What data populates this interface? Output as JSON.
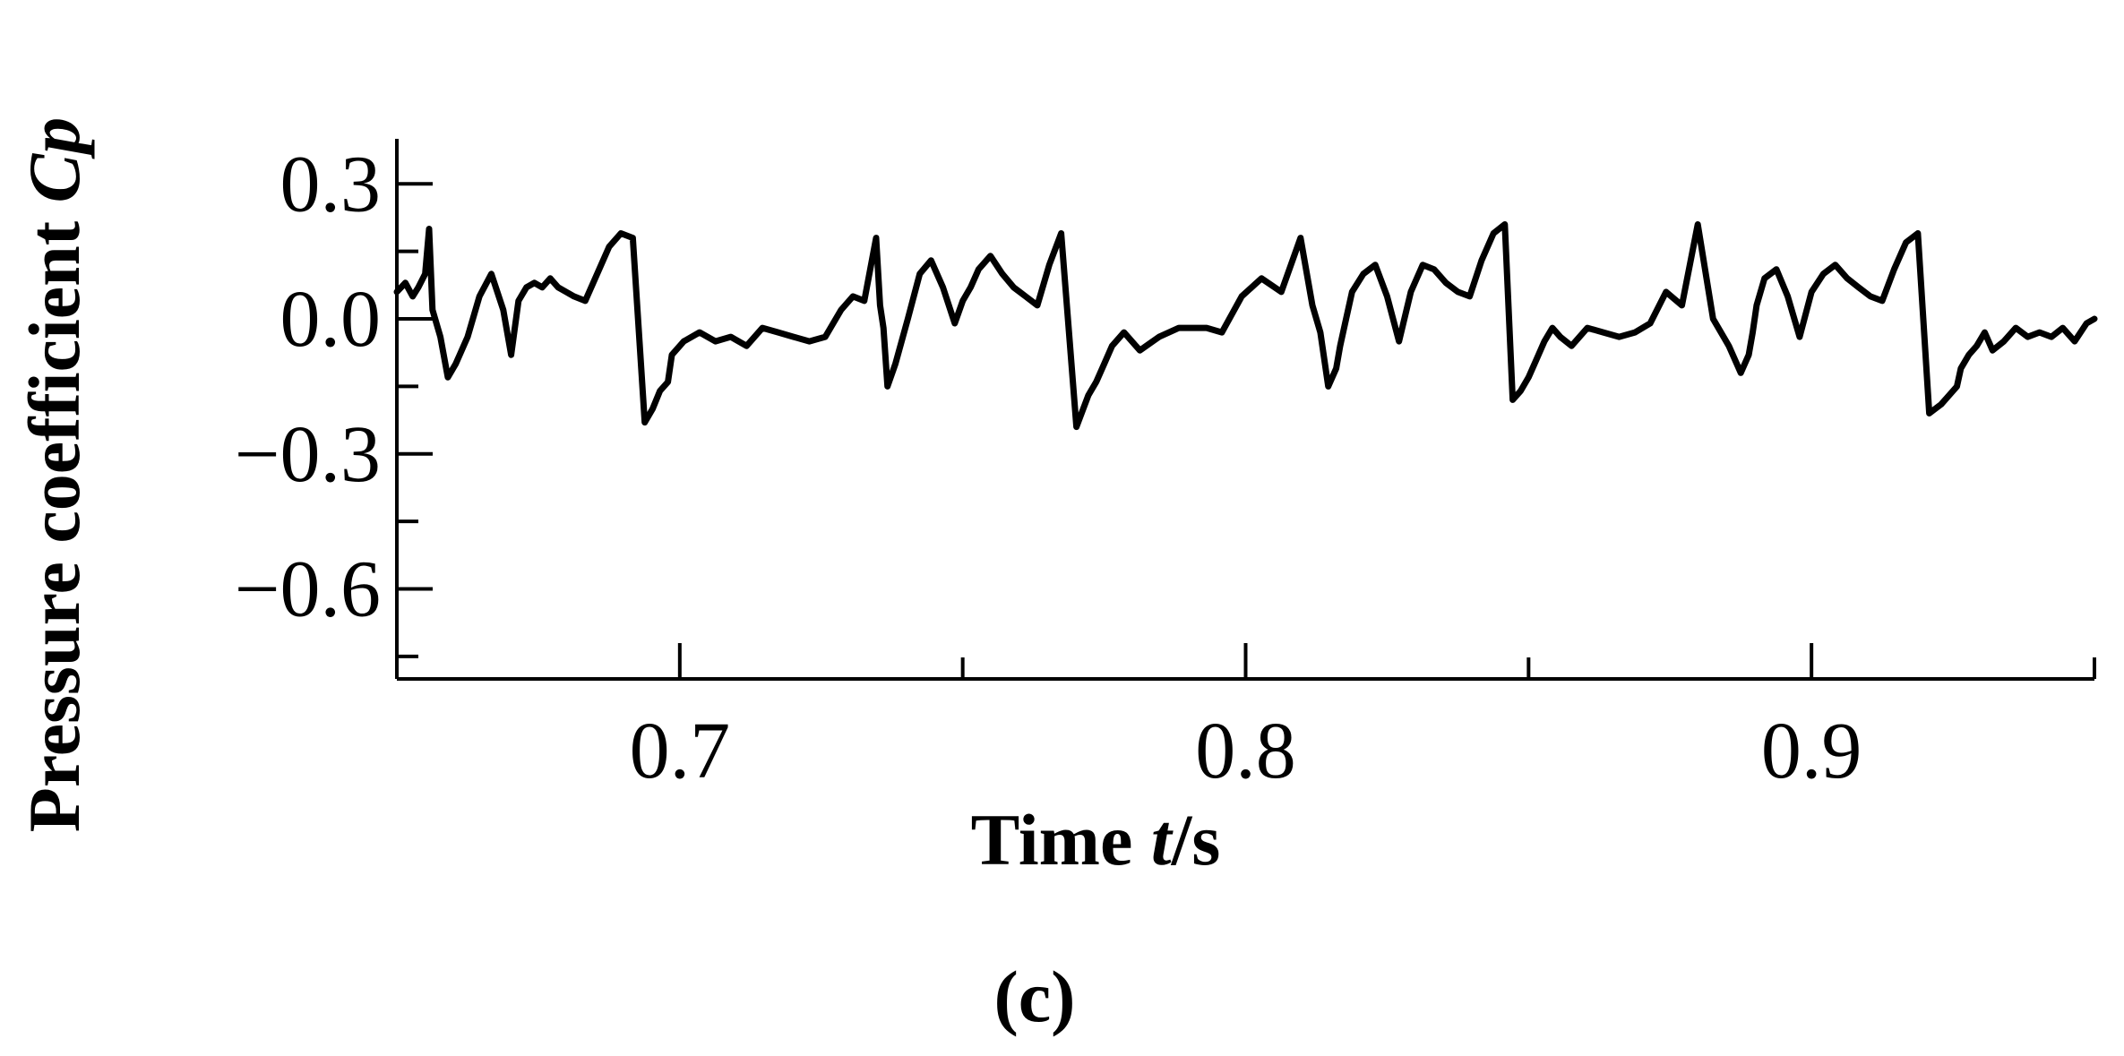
{
  "chart_data": {
    "type": "line",
    "xlabel_parts": [
      {
        "text": "Time ",
        "italic": false
      },
      {
        "text": "t",
        "italic": true
      },
      {
        "text": "/s",
        "italic": false
      }
    ],
    "ylabel_parts": [
      {
        "text": "Pressure coefficient ",
        "italic": false
      },
      {
        "text": "Cp",
        "italic": true
      }
    ],
    "panel_label": "(c)",
    "xlim": [
      0.65,
      0.95
    ],
    "ylim": [
      -0.8,
      0.4
    ],
    "x_major_ticks": [
      0.7,
      0.8,
      0.9
    ],
    "x_minor_ticks": [
      0.75,
      0.85,
      0.95
    ],
    "x_tick_labels": [
      "0.7",
      "0.8",
      "0.9"
    ],
    "y_major_ticks": [
      0.3,
      0.0,
      -0.3,
      -0.6
    ],
    "y_minor_ticks": [
      0.15,
      -0.15,
      -0.45,
      -0.75
    ],
    "y_tick_labels": [
      "0.3",
      "0.0",
      "−0.3",
      "−0.6"
    ],
    "grid": false,
    "line_color": "#000000",
    "series": [
      {
        "x": [
          0.65,
          0.6515,
          0.6528,
          0.6538,
          0.655,
          0.6557,
          0.6563,
          0.6577,
          0.659,
          0.6604,
          0.6625,
          0.6646,
          0.6667,
          0.6688,
          0.6702,
          0.6715,
          0.6729,
          0.6743,
          0.6757,
          0.6771,
          0.6785,
          0.6799,
          0.6813,
          0.6833,
          0.6854,
          0.6875,
          0.6896,
          0.6917,
          0.6938,
          0.6952,
          0.6965,
          0.6979,
          0.6986,
          0.7007,
          0.7035,
          0.7063,
          0.709,
          0.7118,
          0.7146,
          0.7174,
          0.7201,
          0.7229,
          0.7257,
          0.7285,
          0.7306,
          0.7326,
          0.7347,
          0.7354,
          0.736,
          0.7367,
          0.7381,
          0.7403,
          0.7424,
          0.7444,
          0.7465,
          0.7486,
          0.75,
          0.7514,
          0.7528,
          0.7549,
          0.757,
          0.759,
          0.7611,
          0.7632,
          0.7653,
          0.7674,
          0.7701,
          0.7722,
          0.7736,
          0.775,
          0.7764,
          0.7785,
          0.7813,
          0.7847,
          0.7882,
          0.791,
          0.7931,
          0.7958,
          0.7993,
          0.8028,
          0.8063,
          0.8097,
          0.8118,
          0.8132,
          0.8146,
          0.816,
          0.8167,
          0.8174,
          0.8188,
          0.8208,
          0.8229,
          0.825,
          0.8271,
          0.8292,
          0.8313,
          0.8333,
          0.8354,
          0.8375,
          0.8396,
          0.8417,
          0.8438,
          0.8458,
          0.8472,
          0.8486,
          0.85,
          0.8514,
          0.8528,
          0.8542,
          0.8556,
          0.8576,
          0.8604,
          0.8632,
          0.866,
          0.8688,
          0.8715,
          0.8743,
          0.8771,
          0.8799,
          0.8826,
          0.8854,
          0.8875,
          0.8889,
          0.8896,
          0.8903,
          0.8917,
          0.8938,
          0.8958,
          0.8979,
          0.9,
          0.9021,
          0.9042,
          0.9063,
          0.9083,
          0.9104,
          0.9125,
          0.9146,
          0.9167,
          0.9188,
          0.9208,
          0.9229,
          0.9243,
          0.9257,
          0.9264,
          0.9278,
          0.9292,
          0.9306,
          0.932,
          0.934,
          0.9361,
          0.9382,
          0.9403,
          0.9424,
          0.9444,
          0.9465,
          0.9486,
          0.95
        ],
        "y": [
          0.06,
          0.08,
          0.05,
          0.07,
          0.1,
          0.2,
          0.02,
          -0.04,
          -0.13,
          -0.1,
          -0.04,
          0.05,
          0.1,
          0.02,
          -0.08,
          0.04,
          0.07,
          0.08,
          0.07,
          0.09,
          0.07,
          0.06,
          0.05,
          0.04,
          0.1,
          0.16,
          0.19,
          0.18,
          -0.23,
          -0.2,
          -0.16,
          -0.14,
          -0.08,
          -0.05,
          -0.03,
          -0.05,
          -0.04,
          -0.06,
          -0.02,
          -0.03,
          -0.04,
          -0.05,
          -0.04,
          0.02,
          0.05,
          0.04,
          0.18,
          0.03,
          -0.02,
          -0.15,
          -0.1,
          0.0,
          0.1,
          0.13,
          0.07,
          -0.01,
          0.04,
          0.07,
          0.11,
          0.14,
          0.1,
          0.07,
          0.05,
          0.03,
          0.12,
          0.19,
          -0.24,
          -0.17,
          -0.14,
          -0.1,
          -0.06,
          -0.03,
          -0.07,
          -0.04,
          -0.02,
          -0.02,
          -0.02,
          -0.03,
          0.05,
          0.09,
          0.06,
          0.18,
          0.03,
          -0.03,
          -0.15,
          -0.11,
          -0.06,
          -0.02,
          0.06,
          0.1,
          0.12,
          0.05,
          -0.05,
          0.06,
          0.12,
          0.11,
          0.08,
          0.06,
          0.05,
          0.13,
          0.19,
          0.21,
          -0.18,
          -0.16,
          -0.13,
          -0.09,
          -0.05,
          -0.02,
          -0.04,
          -0.06,
          -0.02,
          -0.03,
          -0.04,
          -0.03,
          -0.01,
          0.06,
          0.03,
          0.21,
          0.0,
          -0.06,
          -0.12,
          -0.08,
          -0.03,
          0.03,
          0.09,
          0.11,
          0.05,
          -0.04,
          0.06,
          0.1,
          0.12,
          0.09,
          0.07,
          0.05,
          0.04,
          0.11,
          0.17,
          0.19,
          -0.21,
          -0.19,
          -0.17,
          -0.15,
          -0.11,
          -0.08,
          -0.06,
          -0.03,
          -0.07,
          -0.05,
          -0.02,
          -0.04,
          -0.03,
          -0.04,
          -0.02,
          -0.05,
          -0.01,
          0.0
        ]
      }
    ]
  }
}
